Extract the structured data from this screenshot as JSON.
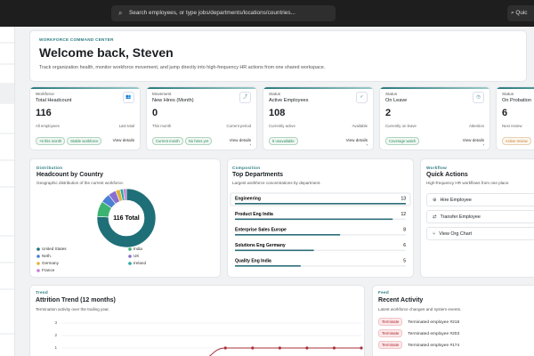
{
  "topbar": {
    "search_placeholder": "Search employees, or type jobs/departments/locations/countries...",
    "quick_button": "Quic"
  },
  "hero": {
    "eyebrow": "WORKFORCE COMMAND CENTER",
    "title": "Welcome back, Steven",
    "subtitle": "Track organization health, monitor workforce movement, and jump directly into high-frequency HR actions from one shared workspace."
  },
  "kpis": [
    {
      "section": "Workforce",
      "title": "Total Headcount",
      "value": "116",
      "caption": "All employees",
      "caption_right": "Last total",
      "chips": [
        {
          "text": "+6 this month",
          "color": "#2f8f5b"
        },
        {
          "text": "Stable workforce",
          "color": "#2f8f5b"
        }
      ],
      "link": "View details"
    },
    {
      "section": "Movement",
      "title": "New Hires (Month)",
      "value": "0",
      "caption": "This month",
      "caption_right": "Current period",
      "chips": [
        {
          "text": "Current month",
          "color": "#2f8f5b"
        },
        {
          "text": "No hires yet",
          "color": "#2f8f5b"
        }
      ],
      "link": "View details ›"
    },
    {
      "section": "Status",
      "title": "Active Employees",
      "value": "108",
      "caption": "Currently active",
      "caption_right": "Available",
      "chips": [
        {
          "text": "8 unavailable",
          "color": "#2f8f5b"
        }
      ],
      "link": "View details ›"
    },
    {
      "section": "Status",
      "title": "On Leave",
      "value": "2",
      "caption": "Currently on leave",
      "caption_right": "Attention",
      "chips": [
        {
          "text": "Coverage watch",
          "color": "#2f8f5b"
        }
      ],
      "link": "View details ›"
    },
    {
      "section": "Status",
      "title": "On Probation",
      "value": "6",
      "caption": "Next review",
      "caption_right": "",
      "chips": [
        {
          "text": "Active review",
          "color": "#c9822b"
        }
      ],
      "link": ""
    }
  ],
  "distribution": {
    "eyebrow": "Distribution",
    "title": "Headcount by Country",
    "subtitle": "Geographic distribution of the current workforce.",
    "center_label": "116 Total",
    "chart_data": {
      "type": "pie",
      "categories": [
        "United States",
        "India",
        "Neth.",
        "UK",
        "Germany",
        "Ireland",
        "France"
      ],
      "values": [
        88,
        10,
        6,
        5,
        3,
        2,
        2
      ],
      "colors": [
        "#1f6f78",
        "#3cb371",
        "#4a7fd4",
        "#8a6fd1",
        "#e0b43a",
        "#2aa7a0",
        "#c77dd6"
      ]
    }
  },
  "composition": {
    "eyebrow": "Composition",
    "title": "Top Departments",
    "subtitle": "Largest workforce concentrations by department.",
    "chart_data": {
      "type": "bar",
      "categories": [
        "Engineering",
        "Product Eng India",
        "Enterprise Sales Europe",
        "Solutions Eng Germany",
        "Quality Eng India"
      ],
      "values": [
        13,
        12,
        8,
        6,
        5
      ],
      "color": "#2c6e78"
    }
  },
  "workflow": {
    "eyebrow": "Workflow",
    "title": "Quick Actions",
    "subtitle": "High-frequency HR workflows from one place.",
    "actions": [
      "Hire Employee",
      "Transfer Employee",
      "View Org Chart"
    ]
  },
  "trend": {
    "eyebrow": "Trend",
    "title": "Attrition Trend (12 months)",
    "subtitle": "Termination activity over the trailing year.",
    "chart_data": {
      "type": "line",
      "values": [
        0,
        0,
        0,
        0,
        0,
        0,
        1,
        1,
        1,
        1,
        1,
        1
      ],
      "color": "#a8303a",
      "ylim": [
        0,
        3
      ],
      "yticks": [
        1,
        2,
        3
      ],
      "grid": true
    }
  },
  "feed": {
    "eyebrow": "Feed",
    "title": "Recent Activity",
    "subtitle": "Latest workforce changes and system events.",
    "items": [
      {
        "badge": "Terminate",
        "text": "Terminated employee #218"
      },
      {
        "badge": "Terminate",
        "text": "Terminated employee #203"
      },
      {
        "badge": "Terminate",
        "text": "Terminated employee #174"
      }
    ]
  }
}
